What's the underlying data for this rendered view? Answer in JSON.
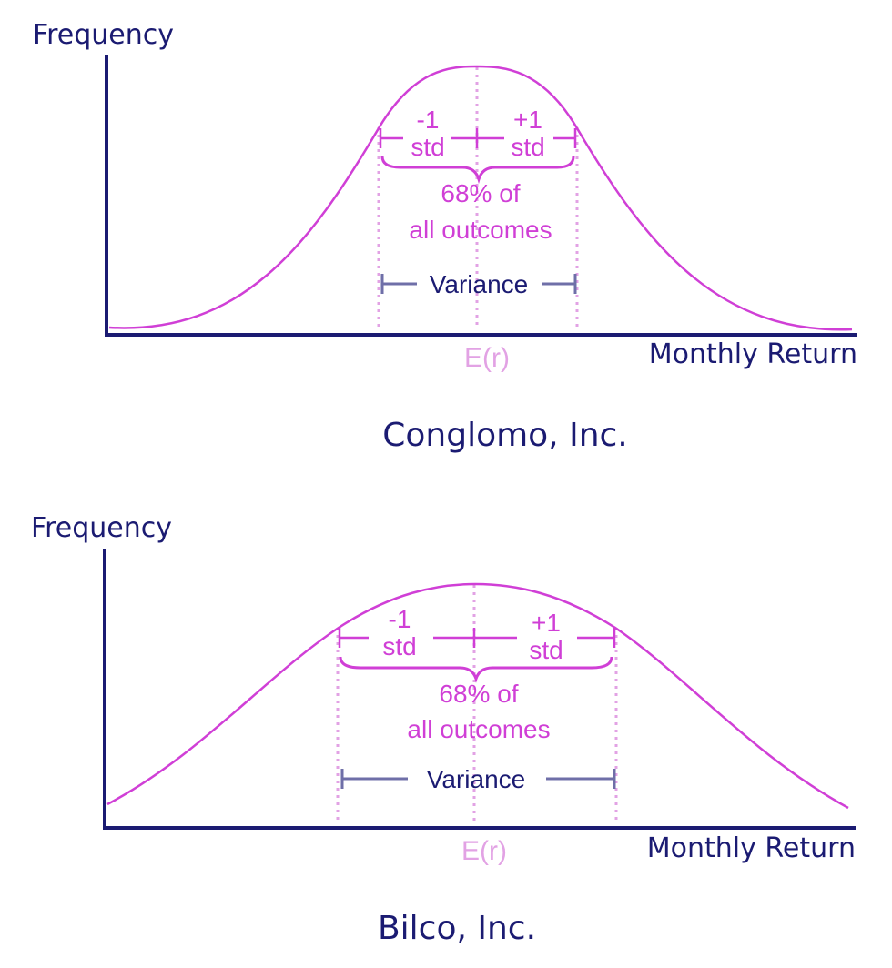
{
  "panels": [
    {
      "id": "conglomo",
      "y_axis_label": "Frequency",
      "x_axis_label": "Monthly Return",
      "mean_label": "E(r)",
      "minus_std_top": "-1",
      "minus_std_bottom": "std",
      "plus_std_top": "+1",
      "plus_std_bottom": "std",
      "pct_line1": "68% of",
      "pct_line2": "all outcomes",
      "variance_label": "Variance",
      "company": "Conglomo, Inc."
    },
    {
      "id": "bilco",
      "y_axis_label": "Frequency",
      "x_axis_label": "Monthly Return",
      "mean_label": "E(r)",
      "minus_std_top": "-1",
      "minus_std_bottom": "std",
      "plus_std_top": "+1",
      "plus_std_bottom": "std",
      "pct_line1": "68% of",
      "pct_line2": "all outcomes",
      "variance_label": "Variance",
      "company": "Bilco, Inc."
    }
  ],
  "colors": {
    "axis": "#1b1b72",
    "curve": "#d03fd6",
    "guide": "#e2a2e4",
    "variance_bar": "#6f6fa8"
  }
}
